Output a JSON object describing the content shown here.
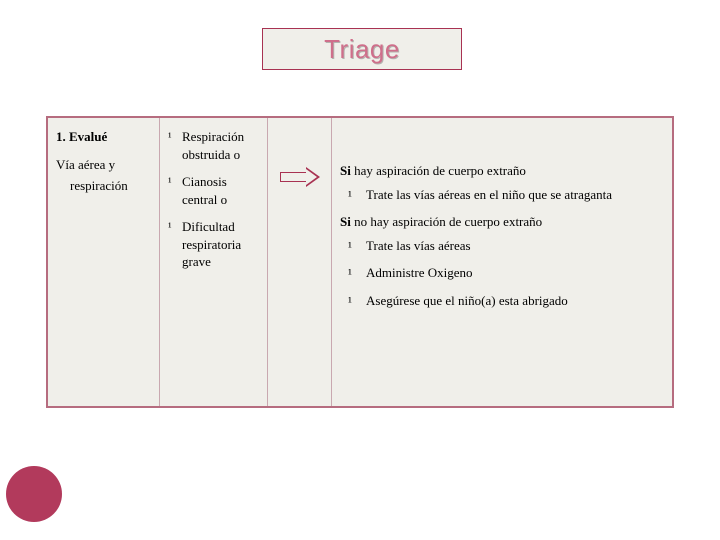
{
  "colors": {
    "background": "#ffffff",
    "panel_bg": "#f0efea",
    "accent": "#a83252",
    "title_text": "#cf6f8b",
    "divider": "#c9a8b0",
    "circle": "#b23a5c",
    "text": "#000000"
  },
  "title": "Triage",
  "col1": {
    "heading": "1. Evalué",
    "line1": "Vía aérea y",
    "line2": "respiración"
  },
  "col2": {
    "items": [
      {
        "line1": "Respiración",
        "line2": "obstruida o"
      },
      {
        "line1": "Cianosis",
        "line2": "central o"
      },
      {
        "line1": "Dificultad",
        "line2": "respiratoria",
        "line3": "grave"
      }
    ]
  },
  "col4": {
    "line_a": "Si hay aspiración de cuerpo extraño",
    "bullet_a": "Trate las vías aéreas en el niño que se atraganta",
    "line_b": "Si no hay aspiración de cuerpo extraño",
    "bullet_b": "Trate las vías aéreas",
    "bullet_c": "Administre Oxigeno",
    "bullet_d": "Asegúrese que el niño(a) esta abrigado"
  },
  "bullet_glyph": "¹"
}
